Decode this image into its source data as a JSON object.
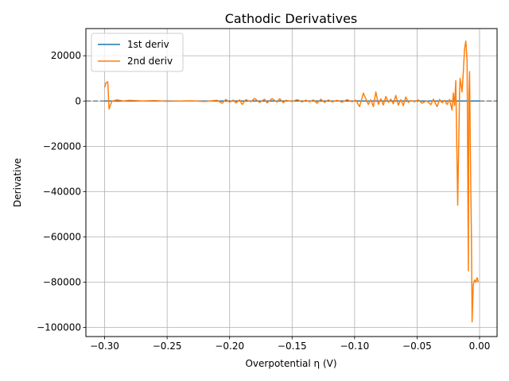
{
  "chart_data": {
    "type": "line",
    "title": "Cathodic Derivatives",
    "xlabel": "Overpotential η (V)",
    "ylabel": "Derivative",
    "xlim": [
      -0.315,
      0.014
    ],
    "ylim": [
      -104000,
      32000
    ],
    "x_ticks": [
      -0.3,
      -0.25,
      -0.2,
      -0.15,
      -0.1,
      -0.05,
      0.0
    ],
    "x_tick_labels": [
      "−0.30",
      "−0.25",
      "−0.20",
      "−0.15",
      "−0.10",
      "−0.05",
      "0.00"
    ],
    "y_ticks": [
      20000,
      0,
      -20000,
      -40000,
      -60000,
      -80000,
      -100000
    ],
    "y_tick_labels": [
      "20000",
      "0",
      "−20000",
      "−40000",
      "−60000",
      "−80000",
      "−100000"
    ],
    "grid": true,
    "legend_position": "upper-left",
    "reference_line": {
      "y": 0,
      "style": "dashed",
      "color": "#808080"
    },
    "series": [
      {
        "name": "1st deriv",
        "color": "#1f77b4",
        "x": [
          -0.3,
          -0.25,
          -0.2,
          -0.15,
          -0.1,
          -0.05,
          0.0
        ],
        "y": [
          0,
          0,
          0,
          0,
          0,
          0,
          0
        ]
      },
      {
        "name": "2nd deriv",
        "color": "#ff7f0e",
        "x": [
          -0.3,
          -0.299,
          -0.2975,
          -0.2965,
          -0.2955,
          -0.294,
          -0.29,
          -0.285,
          -0.28,
          -0.27,
          -0.26,
          -0.25,
          -0.24,
          -0.23,
          -0.22,
          -0.21,
          -0.206,
          -0.203,
          -0.2,
          -0.197,
          -0.195,
          -0.192,
          -0.19,
          -0.187,
          -0.183,
          -0.18,
          -0.176,
          -0.172,
          -0.17,
          -0.166,
          -0.162,
          -0.16,
          -0.157,
          -0.155,
          -0.15,
          -0.146,
          -0.142,
          -0.139,
          -0.136,
          -0.133,
          -0.13,
          -0.127,
          -0.124,
          -0.121,
          -0.118,
          -0.114,
          -0.11,
          -0.106,
          -0.102,
          -0.099,
          -0.096,
          -0.093,
          -0.091,
          -0.089,
          -0.087,
          -0.085,
          -0.083,
          -0.081,
          -0.079,
          -0.077,
          -0.075,
          -0.073,
          -0.071,
          -0.069,
          -0.067,
          -0.065,
          -0.063,
          -0.061,
          -0.059,
          -0.057,
          -0.055,
          -0.052,
          -0.049,
          -0.046,
          -0.044,
          -0.042,
          -0.039,
          -0.037,
          -0.034,
          -0.032,
          -0.03,
          -0.028,
          -0.026,
          -0.024,
          -0.022,
          -0.021,
          -0.02,
          -0.019,
          -0.0175,
          -0.016,
          -0.0155,
          -0.014,
          -0.013,
          -0.012,
          -0.011,
          -0.01,
          -0.009,
          -0.0085,
          -0.008,
          -0.007,
          -0.0065,
          -0.006,
          -0.005,
          -0.004,
          -0.003,
          -0.002,
          -0.001
        ],
        "y": [
          6000,
          8000,
          8500,
          -3500,
          -2000,
          0,
          500,
          0,
          300,
          0,
          200,
          -100,
          0,
          100,
          -200,
          300,
          -1000,
          700,
          -500,
          400,
          -800,
          500,
          -1500,
          600,
          -300,
          1200,
          -600,
          800,
          -800,
          1100,
          -500,
          1000,
          -700,
          300,
          -200,
          600,
          -400,
          400,
          -300,
          500,
          -1000,
          800,
          -600,
          500,
          -400,
          300,
          -500,
          600,
          -300,
          400,
          -2500,
          3500,
          1000,
          -1500,
          600,
          -2500,
          4000,
          -1500,
          1000,
          -1800,
          2000,
          -600,
          800,
          -1200,
          2500,
          -1800,
          600,
          -2000,
          1800,
          -600,
          200,
          -300,
          500,
          -1000,
          -300,
          0,
          -1600,
          800,
          -2500,
          700,
          -700,
          300,
          -1500,
          700,
          -4000,
          3500,
          -2000,
          9000,
          -46000,
          5000,
          10000,
          4000,
          13000,
          23000,
          26500,
          18000,
          -75000,
          3000,
          13000,
          -40000,
          -60000,
          -97500,
          -81000,
          -79000,
          -80000,
          -78000,
          -80000
        ]
      }
    ]
  }
}
